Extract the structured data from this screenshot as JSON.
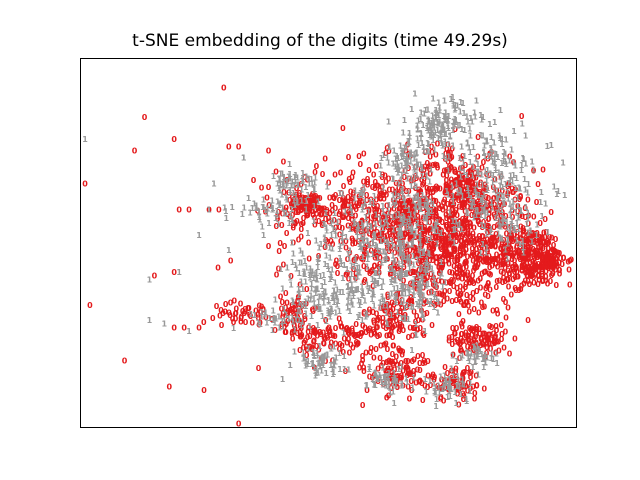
{
  "chart_data": {
    "type": "scatter",
    "title": "t-SNE embedding of the digits (time 49.29s)",
    "xlabel": "",
    "ylabel": "",
    "xlim": [
      0,
      1
    ],
    "ylim": [
      0,
      1
    ],
    "grid": false,
    "legend": "none",
    "x_ticks": [],
    "y_ticks": [],
    "series": [
      {
        "label": "0",
        "color": "#e41a1c",
        "clusters": [
          {
            "cx": 0.75,
            "cy": 0.5,
            "sx": 0.085,
            "sy": 0.1,
            "n": 900
          },
          {
            "cx": 0.91,
            "cy": 0.46,
            "sx": 0.035,
            "sy": 0.04,
            "n": 260
          },
          {
            "cx": 0.6,
            "cy": 0.58,
            "sx": 0.1,
            "sy": 0.07,
            "n": 420
          },
          {
            "cx": 0.8,
            "cy": 0.24,
            "sx": 0.03,
            "sy": 0.02,
            "n": 100
          },
          {
            "cx": 0.64,
            "cy": 0.16,
            "sx": 0.035,
            "sy": 0.035,
            "n": 110
          },
          {
            "cx": 0.76,
            "cy": 0.12,
            "sx": 0.025,
            "sy": 0.025,
            "n": 70
          },
          {
            "cx": 0.52,
            "cy": 0.24,
            "sx": 0.04,
            "sy": 0.03,
            "n": 100
          },
          {
            "cx": 0.64,
            "cy": 0.3,
            "sx": 0.03,
            "sy": 0.03,
            "n": 80
          },
          {
            "cx": 0.45,
            "cy": 0.6,
            "sx": 0.03,
            "sy": 0.02,
            "n": 80
          },
          {
            "cx": 0.33,
            "cy": 0.31,
            "sx": 0.03,
            "sy": 0.015,
            "n": 45
          },
          {
            "cx": 0.44,
            "cy": 0.27,
            "sx": 0.02,
            "sy": 0.02,
            "n": 35
          },
          {
            "cx": 0.78,
            "cy": 0.65,
            "sx": 0.025,
            "sy": 0.03,
            "n": 80
          },
          {
            "cx": 0.73,
            "cy": 0.72,
            "sx": 0.02,
            "sy": 0.03,
            "n": 40
          },
          {
            "cx": 0.43,
            "cy": 0.33,
            "sx": 0.02,
            "sy": 0.02,
            "n": 30
          },
          {
            "cx": 0.95,
            "cy": 0.45,
            "sx": 0.015,
            "sy": 0.015,
            "n": 60
          }
        ],
        "points": [
          [
            0.29,
            0.92
          ],
          [
            0.13,
            0.84
          ],
          [
            0.11,
            0.75
          ],
          [
            0.01,
            0.66
          ],
          [
            0.53,
            0.81
          ],
          [
            0.19,
            0.78
          ],
          [
            0.2,
            0.59
          ],
          [
            0.22,
            0.59
          ],
          [
            0.28,
            0.59
          ],
          [
            0.15,
            0.41
          ],
          [
            0.19,
            0.42
          ],
          [
            0.02,
            0.33
          ],
          [
            0.09,
            0.18
          ],
          [
            0.18,
            0.11
          ],
          [
            0.25,
            0.1
          ],
          [
            0.57,
            0.06
          ],
          [
            0.32,
            0.01
          ],
          [
            0.38,
            0.75
          ],
          [
            0.41,
            0.72
          ],
          [
            0.32,
            0.76
          ],
          [
            0.38,
            0.49
          ],
          [
            0.4,
            0.43
          ],
          [
            0.41,
            0.44
          ],
          [
            0.43,
            0.5
          ],
          [
            0.36,
            0.16
          ],
          [
            0.21,
            0.27
          ],
          [
            0.19,
            0.27
          ],
          [
            0.24,
            0.27
          ],
          [
            0.26,
            0.59
          ],
          [
            0.43,
            0.54
          ],
          [
            0.35,
            0.67
          ],
          [
            0.38,
            0.65
          ],
          [
            0.3,
            0.76
          ]
        ]
      },
      {
        "label": "1",
        "color": "#999999",
        "clusters": [
          {
            "cx": 0.73,
            "cy": 0.82,
            "sx": 0.035,
            "sy": 0.035,
            "n": 140
          },
          {
            "cx": 0.83,
            "cy": 0.68,
            "sx": 0.06,
            "sy": 0.07,
            "n": 180
          },
          {
            "cx": 0.66,
            "cy": 0.72,
            "sx": 0.025,
            "sy": 0.03,
            "n": 70
          },
          {
            "cx": 0.58,
            "cy": 0.5,
            "sx": 0.07,
            "sy": 0.07,
            "n": 240
          },
          {
            "cx": 0.66,
            "cy": 0.38,
            "sx": 0.045,
            "sy": 0.05,
            "n": 160
          },
          {
            "cx": 0.5,
            "cy": 0.34,
            "sx": 0.04,
            "sy": 0.03,
            "n": 100
          },
          {
            "cx": 0.43,
            "cy": 0.66,
            "sx": 0.025,
            "sy": 0.02,
            "n": 55
          },
          {
            "cx": 0.38,
            "cy": 0.59,
            "sx": 0.035,
            "sy": 0.015,
            "n": 45
          },
          {
            "cx": 0.48,
            "cy": 0.18,
            "sx": 0.03,
            "sy": 0.02,
            "n": 60
          },
          {
            "cx": 0.62,
            "cy": 0.13,
            "sx": 0.02,
            "sy": 0.02,
            "n": 50
          },
          {
            "cx": 0.75,
            "cy": 0.11,
            "sx": 0.025,
            "sy": 0.02,
            "n": 50
          },
          {
            "cx": 0.8,
            "cy": 0.19,
            "sx": 0.02,
            "sy": 0.015,
            "n": 40
          },
          {
            "cx": 0.47,
            "cy": 0.42,
            "sx": 0.02,
            "sy": 0.03,
            "n": 35
          },
          {
            "cx": 0.4,
            "cy": 0.29,
            "sx": 0.025,
            "sy": 0.015,
            "n": 30
          },
          {
            "cx": 0.68,
            "cy": 0.57,
            "sx": 0.04,
            "sy": 0.04,
            "n": 90
          },
          {
            "cx": 0.86,
            "cy": 0.55,
            "sx": 0.04,
            "sy": 0.04,
            "n": 70
          }
        ],
        "points": [
          [
            0.01,
            0.78
          ],
          [
            0.33,
            0.73
          ],
          [
            0.22,
            0.26
          ],
          [
            0.26,
            0.59
          ],
          [
            0.37,
            0.52
          ],
          [
            0.14,
            0.4
          ],
          [
            0.2,
            0.42
          ],
          [
            0.14,
            0.29
          ],
          [
            0.17,
            0.28
          ],
          [
            0.4,
            0.55
          ],
          [
            0.43,
            0.47
          ],
          [
            0.33,
            0.73
          ],
          [
            0.39,
            0.68
          ],
          [
            0.27,
            0.66
          ],
          [
            0.24,
            0.52
          ],
          [
            0.3,
            0.48
          ],
          [
            0.34,
            0.62
          ]
        ]
      }
    ]
  }
}
